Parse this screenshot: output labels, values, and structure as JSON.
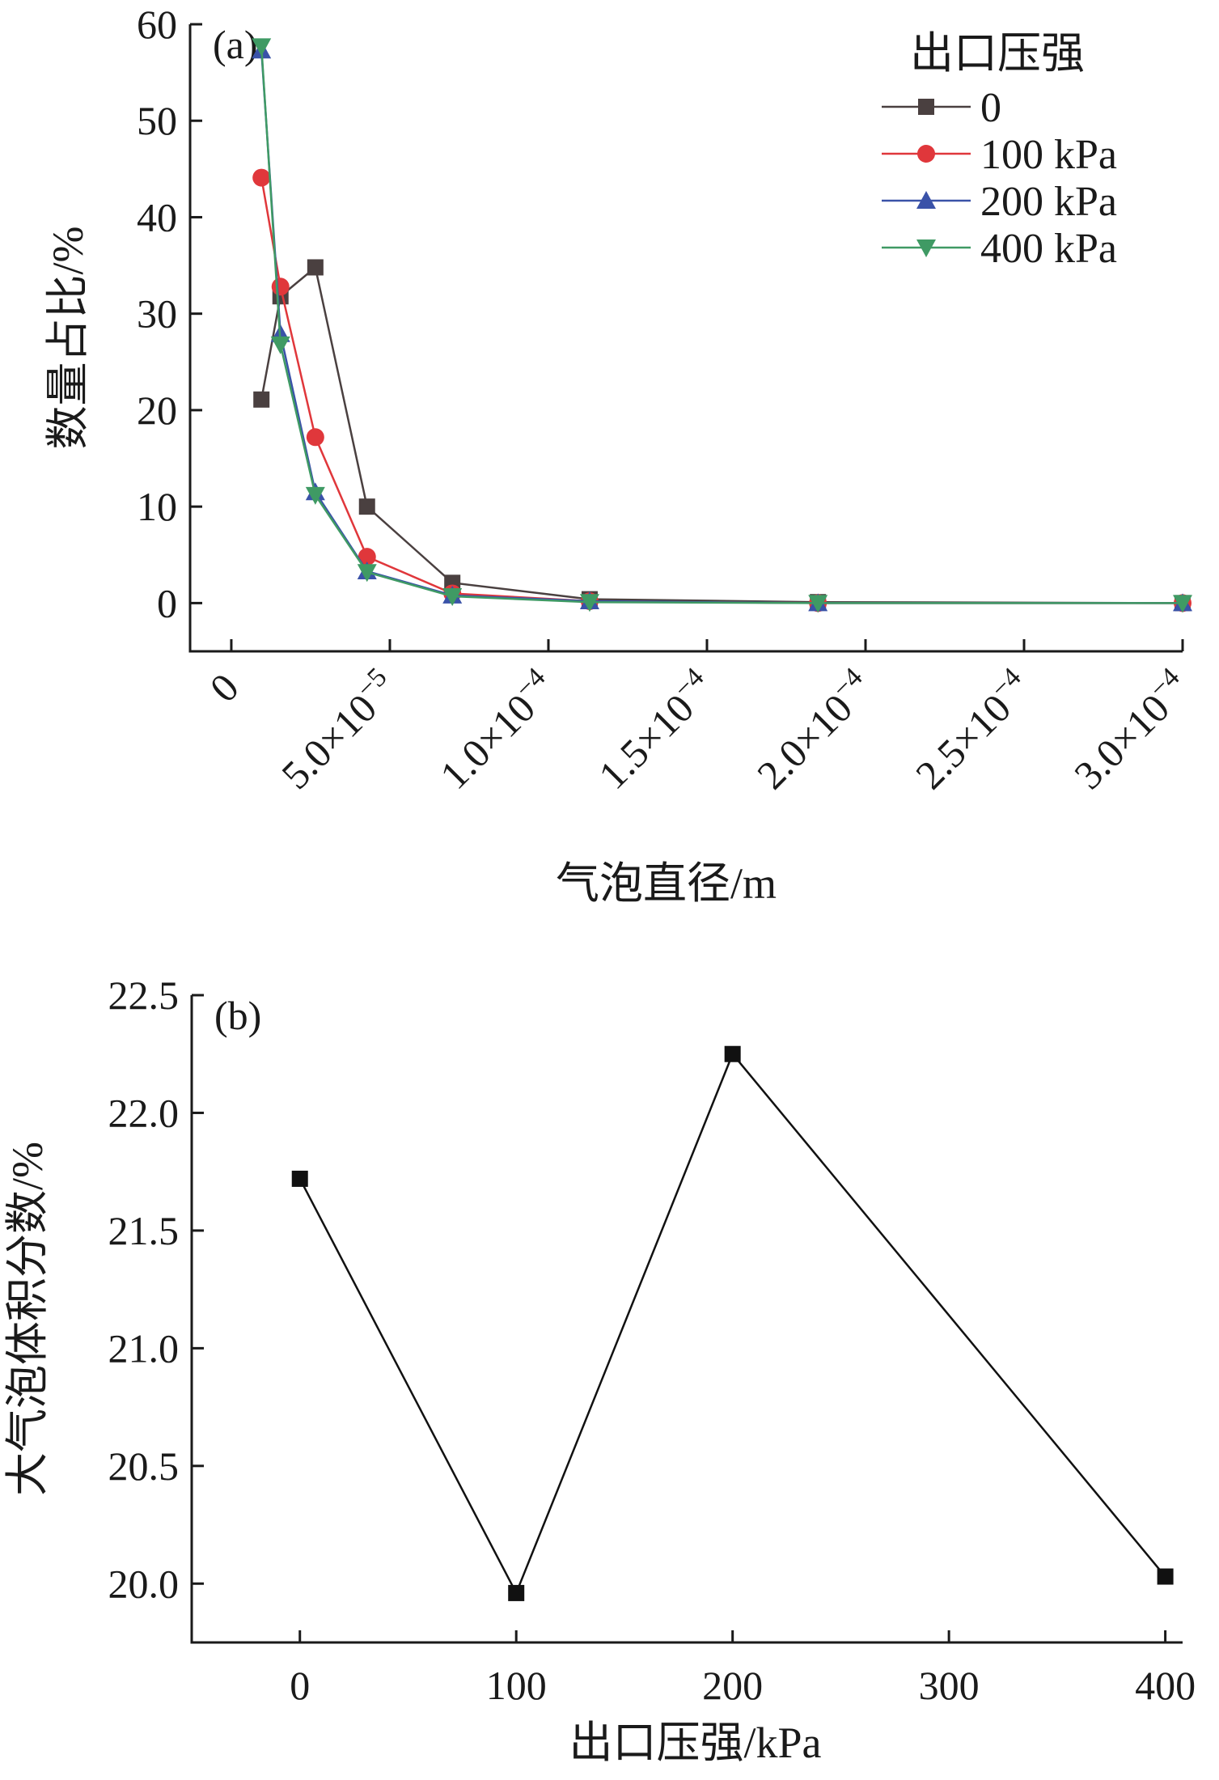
{
  "chart_data": [
    {
      "type": "line",
      "panel_label": "(a)",
      "xlabel": "气泡直径/m",
      "ylabel": "数量占比/%",
      "xlim": [
        -1.3e-05,
        0.0003
      ],
      "ylim": [
        -5,
        60
      ],
      "x_ticks": [
        0,
        5e-05,
        0.0001,
        0.00015,
        0.0002,
        0.00025,
        0.0003
      ],
      "x_tick_labels": [
        {
          "mantissa": "0",
          "exponent": ""
        },
        {
          "mantissa": "5.0×10",
          "exponent": "−5"
        },
        {
          "mantissa": "1.0×10",
          "exponent": "−4"
        },
        {
          "mantissa": "1.5×10",
          "exponent": "−4"
        },
        {
          "mantissa": "2.0×10",
          "exponent": "−4"
        },
        {
          "mantissa": "2.5×10",
          "exponent": "−4"
        },
        {
          "mantissa": "3.0×10",
          "exponent": "−4"
        }
      ],
      "y_ticks": [
        0,
        10,
        20,
        30,
        40,
        50,
        60
      ],
      "y_tick_labels": [
        "0",
        "10",
        "20",
        "30",
        "40",
        "50",
        "60"
      ],
      "legend": {
        "title": "出口压强",
        "position": "top-right"
      },
      "series": [
        {
          "name": "0",
          "color": "#4a4040",
          "marker": "square",
          "x": [
            9.5e-06,
            1.55e-05,
            2.65e-05,
            4.28e-05,
            6.97e-05,
            0.000113,
            0.000185,
            0.0003
          ],
          "y": [
            21.1,
            31.8,
            34.8,
            10.0,
            2.1,
            0.4,
            0.1,
            0.0
          ]
        },
        {
          "name": "100 kPa",
          "color": "#e0373b",
          "marker": "circle",
          "x": [
            9.5e-06,
            1.55e-05,
            2.65e-05,
            4.28e-05,
            6.97e-05,
            0.000113,
            0.000185,
            0.0003
          ],
          "y": [
            44.1,
            32.8,
            17.2,
            4.8,
            1.0,
            0.2,
            0.0,
            0.0
          ]
        },
        {
          "name": "200 kPa",
          "color": "#3a52a8",
          "marker": "triangle-up",
          "x": [
            9.5e-06,
            1.55e-05,
            2.65e-05,
            4.28e-05,
            6.97e-05,
            0.000113,
            0.000185,
            0.0003
          ],
          "y": [
            57.3,
            27.9,
            11.5,
            3.3,
            0.8,
            0.2,
            0.0,
            0.0
          ]
        },
        {
          "name": "400 kPa",
          "color": "#3f9a64",
          "marker": "triangle-down",
          "x": [
            9.5e-06,
            1.55e-05,
            2.65e-05,
            4.28e-05,
            6.97e-05,
            0.000113,
            0.000185,
            0.0003
          ],
          "y": [
            57.7,
            26.8,
            11.2,
            3.2,
            0.7,
            0.1,
            0.0,
            0.0
          ]
        }
      ]
    },
    {
      "type": "line",
      "panel_label": "(b)",
      "xlabel": "出口压强/kPa",
      "ylabel": "大气泡体积分数/%",
      "xlim": [
        -50,
        408
      ],
      "ylim": [
        19.75,
        22.5
      ],
      "x_ticks": [
        0,
        100,
        200,
        300,
        400
      ],
      "x_tick_labels": [
        "0",
        "100",
        "200",
        "300",
        "400"
      ],
      "y_ticks": [
        20.0,
        20.5,
        21.0,
        21.5,
        22.0,
        22.5
      ],
      "y_tick_labels": [
        "20.0",
        "20.5",
        "21.0",
        "21.5",
        "22.0",
        "22.5"
      ],
      "series": [
        {
          "color": "#111111",
          "marker": "square",
          "x": [
            0,
            100,
            200,
            400
          ],
          "y": [
            21.72,
            19.96,
            22.25,
            20.03
          ]
        }
      ]
    }
  ]
}
